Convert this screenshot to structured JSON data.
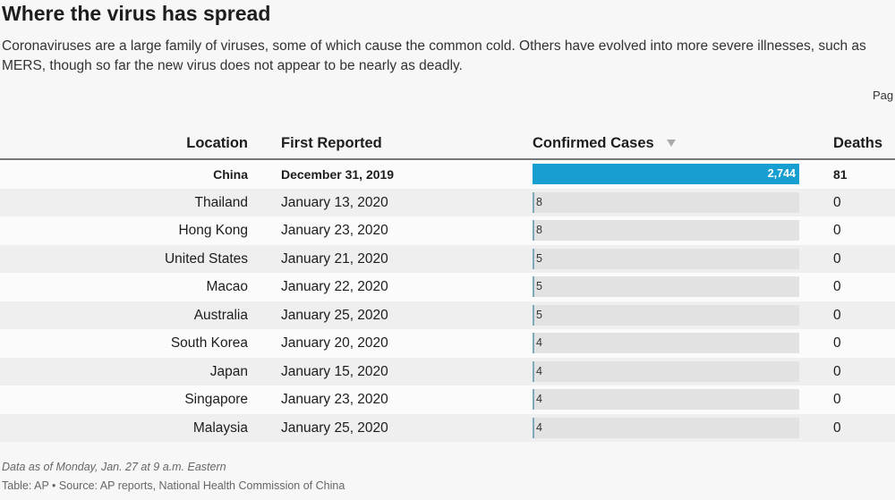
{
  "header": {
    "title": "Where the virus has spread",
    "subtitle": "Coronaviruses are a large family of viruses, some of which cause the common cold. Others have evolved into more severe illnesses, such as MERS, though so far the new virus does not appear to be nearly as deadly.",
    "pagination": "Pag"
  },
  "table": {
    "columns": [
      "Location",
      "First Reported",
      "Confirmed Cases",
      "Deaths"
    ],
    "rows": [
      {
        "location": "China",
        "first_reported": "December 31, 2019",
        "confirmed_cases": {
          "value": 2744,
          "label": "2,744"
        },
        "deaths": 81
      },
      {
        "location": "Thailand",
        "first_reported": "January 13, 2020",
        "confirmed_cases": 8,
        "deaths": 0
      },
      {
        "location": "Hong Kong",
        "first_reported": "January 23, 2020",
        "confirmed_cases": 8,
        "deaths": 0
      },
      {
        "location": "United States",
        "first_reported": "January 21, 2020",
        "confirmed_cases": 5,
        "deaths": 0
      },
      {
        "location": "Macao",
        "first_reported": "January 22, 2020",
        "confirmed_cases": 5,
        "deaths": 0
      },
      {
        "location": "Australia",
        "first_reported": "January 25, 2020",
        "confirmed_cases": 5,
        "deaths": 0
      },
      {
        "location": "South Korea",
        "first_reported": "January 20, 2020",
        "confirmed_cases": 4,
        "deaths": 0
      },
      {
        "location": "Japan",
        "first_reported": "January 15, 2020",
        "confirmed_cases": 4,
        "deaths": 0
      },
      {
        "location": "Singapore",
        "first_reported": "January 23, 2020",
        "confirmed_cases": 4,
        "deaths": 0
      },
      {
        "location": "Malaysia",
        "first_reported": "January 25, 2020",
        "confirmed_cases": 4,
        "deaths": 0
      }
    ]
  },
  "footer": {
    "note": "Data as of Monday, Jan. 27 at 9 a.m. Eastern",
    "source": "Table: AP • Source: AP reports, National Health Commission of China"
  }
}
